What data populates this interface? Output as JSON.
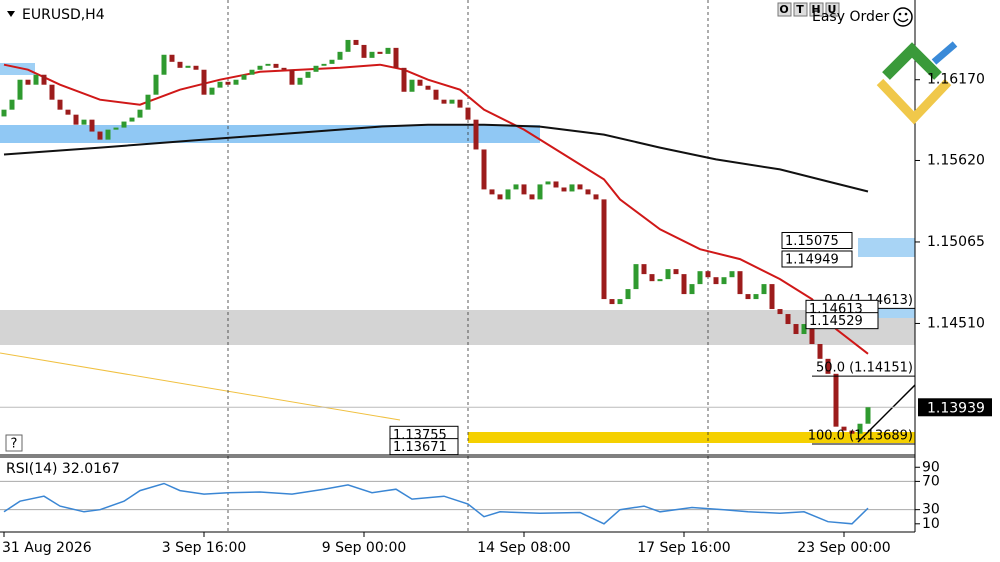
{
  "ui": {
    "toolbar": [
      "O",
      "T",
      "H",
      "U"
    ],
    "easy_order": "Easy Order",
    "help": "?"
  },
  "chart_data": [
    {
      "type": "candlestick",
      "title": "EURUSD,H4",
      "up_color": "#2f9a2f",
      "down_color": "#9c1c1c",
      "xlim": [
        -0.5,
        113.875
      ],
      "ylim": [
        1.13614,
        1.16713
      ],
      "yticks": [
        {
          "value": 1.1617,
          "label": "1.16170"
        },
        {
          "value": 1.1562,
          "label": "1.15620"
        },
        1.15065,
        {
          "value": 1.1451,
          "label": "1.14510"
        }
      ],
      "xticks": [
        {
          "value": 0,
          "label": "31 Aug 2026"
        },
        {
          "value": 25,
          "label": "3 Sep 16:00"
        },
        {
          "value": 45,
          "label": "9 Sep 00:00"
        },
        {
          "value": 65,
          "label": "14 Sep 08:00"
        },
        {
          "value": 85,
          "label": "17 Sep 16:00"
        },
        {
          "value": 105,
          "label": "23 Sep 00:00"
        }
      ],
      "separators": [
        28,
        58,
        88
      ],
      "open": [
        1.1592,
        1.15966,
        1.16034,
        1.1617,
        1.16136,
        1.16204,
        1.16136,
        1.16034,
        1.15966,
        1.15932,
        1.15864,
        1.15898,
        1.15817,
        1.15762,
        1.1583,
        1.15844,
        1.15885,
        1.15912,
        1.15966,
        1.16068,
        1.16204,
        1.1634,
        1.16292,
        1.16251,
        1.16265,
        1.16238,
        1.16068,
        1.16116,
        1.16156,
        1.16136,
        1.1617,
        1.16204,
        1.16238,
        1.16265,
        1.16278,
        1.16251,
        1.16238,
        1.16136,
        1.16183,
        1.16224,
        1.16265,
        1.16278,
        1.16306,
        1.1636,
        1.16441,
        1.16407,
        1.16319,
        1.1636,
        1.16346,
        1.16387,
        1.16251,
        1.16088,
        1.1617,
        1.16129,
        1.16102,
        1.16034,
        1.16007,
        1.16034,
        1.1598,
        1.15898,
        1.15695,
        1.15423,
        1.15389,
        1.15355,
        1.15423,
        1.15457,
        1.15389,
        1.15355,
        1.15457,
        1.15477,
        1.15436,
        1.15409,
        1.15457,
        1.15423,
        1.15389,
        1.15355,
        1.14676,
        1.14642,
        1.14676,
        1.14744,
        1.14914,
        1.14846,
        1.14798,
        1.14812,
        1.1488,
        1.14846,
        1.1471,
        1.14778,
        1.14866,
        1.14825,
        1.14778,
        1.14825,
        1.14866,
        1.1471,
        1.14676,
        1.1471,
        1.14778,
        1.14608,
        1.14574,
        1.14506,
        1.14438,
        1.14506,
        1.1437,
        1.14269,
        1.14167,
        1.13807,
        1.1378,
        1.13759,
        1.13827
      ],
      "close": [
        1.15966,
        1.16034,
        1.1617,
        1.16136,
        1.16204,
        1.16136,
        1.16034,
        1.15966,
        1.15932,
        1.15864,
        1.15898,
        1.15817,
        1.15762,
        1.1583,
        1.15844,
        1.15885,
        1.15912,
        1.15966,
        1.16068,
        1.16204,
        1.1634,
        1.16292,
        1.16251,
        1.16265,
        1.16238,
        1.16068,
        1.16116,
        1.16156,
        1.16136,
        1.1617,
        1.16204,
        1.16238,
        1.16265,
        1.16278,
        1.16251,
        1.16238,
        1.16136,
        1.16183,
        1.16224,
        1.16265,
        1.16278,
        1.16306,
        1.1636,
        1.16441,
        1.16407,
        1.16319,
        1.1636,
        1.16346,
        1.16387,
        1.16251,
        1.16088,
        1.1617,
        1.16129,
        1.16102,
        1.16034,
        1.16007,
        1.16034,
        1.1598,
        1.15898,
        1.15695,
        1.15423,
        1.15389,
        1.15355,
        1.15423,
        1.15457,
        1.15389,
        1.15355,
        1.15457,
        1.15477,
        1.15436,
        1.15409,
        1.15457,
        1.15423,
        1.15389,
        1.15355,
        1.14676,
        1.14642,
        1.14676,
        1.14744,
        1.14914,
        1.14846,
        1.14798,
        1.14812,
        1.1488,
        1.14846,
        1.1471,
        1.14778,
        1.14866,
        1.14825,
        1.14778,
        1.14825,
        1.14866,
        1.1471,
        1.14676,
        1.1471,
        1.14778,
        1.14608,
        1.14574,
        1.14506,
        1.14438,
        1.14506,
        1.1437,
        1.14269,
        1.14167,
        1.13807,
        1.1378,
        1.13759,
        1.13827,
        1.13939
      ],
      "series": [
        {
          "color": "#d01818",
          "x": [
            0,
            3,
            7,
            12,
            17,
            22,
            27,
            32,
            37,
            42,
            47,
            50,
            53,
            57,
            60,
            65,
            70,
            75,
            77,
            82,
            87,
            92,
            97,
            101,
            104,
            108
          ],
          "values": [
            1.16272,
            1.16238,
            1.16136,
            1.16034,
            1.16,
            1.16102,
            1.1617,
            1.16224,
            1.16238,
            1.16251,
            1.16272,
            1.16238,
            1.1617,
            1.16102,
            1.15966,
            1.1583,
            1.15661,
            1.15491,
            1.15355,
            1.15151,
            1.15016,
            1.14948,
            1.14812,
            1.14676,
            1.14472,
            1.14303
          ]
        },
        {
          "color": "#111111",
          "x": [
            0,
            12,
            25,
            37,
            47,
            53,
            60,
            67,
            75,
            82,
            89,
            97,
            103,
            108
          ],
          "values": [
            1.15661,
            1.15708,
            1.15762,
            1.1581,
            1.15851,
            1.15864,
            1.15864,
            1.15851,
            1.15796,
            1.15708,
            1.15627,
            1.15559,
            1.15477,
            1.15409
          ]
        }
      ],
      "current_price": 1.13939,
      "fib_levels": [
        {
          "value": 1.14613,
          "label": "0.0 (1.14613)"
        },
        {
          "value": 1.14151,
          "label": "50.0 (1.14151)"
        },
        {
          "value": 1.13689,
          "label": "100.0 (1.13689)"
        }
      ],
      "price_labels": [
        1.15075,
        1.14949,
        1.14613,
        1.14529,
        1.13755,
        1.13671
      ]
    },
    {
      "type": "line",
      "title": "RSI(14) 32.0167",
      "ylim": [
        -1.6,
        103.1
      ],
      "yticks": [
        90,
        70,
        30,
        10
      ],
      "levels": [
        70,
        30
      ],
      "xlim": [
        -0.5,
        113.875
      ],
      "color": "#3a86d4",
      "x": [
        0,
        2,
        5,
        7,
        10,
        12,
        15,
        17,
        20,
        22,
        25,
        28,
        32,
        36,
        40,
        43,
        46,
        49,
        51,
        55,
        58,
        60,
        62,
        67,
        72,
        75,
        77,
        80,
        82,
        86,
        90,
        93,
        97,
        100,
        103,
        106,
        108
      ],
      "values": [
        27,
        42,
        49,
        35,
        27,
        30,
        42,
        57,
        67,
        57,
        52,
        54,
        55,
        52,
        59,
        65,
        54,
        59,
        45,
        49,
        38,
        20,
        27,
        25,
        26,
        10,
        30,
        35,
        27,
        33,
        30,
        27,
        25,
        27,
        13,
        10,
        32.0167
      ]
    }
  ]
}
